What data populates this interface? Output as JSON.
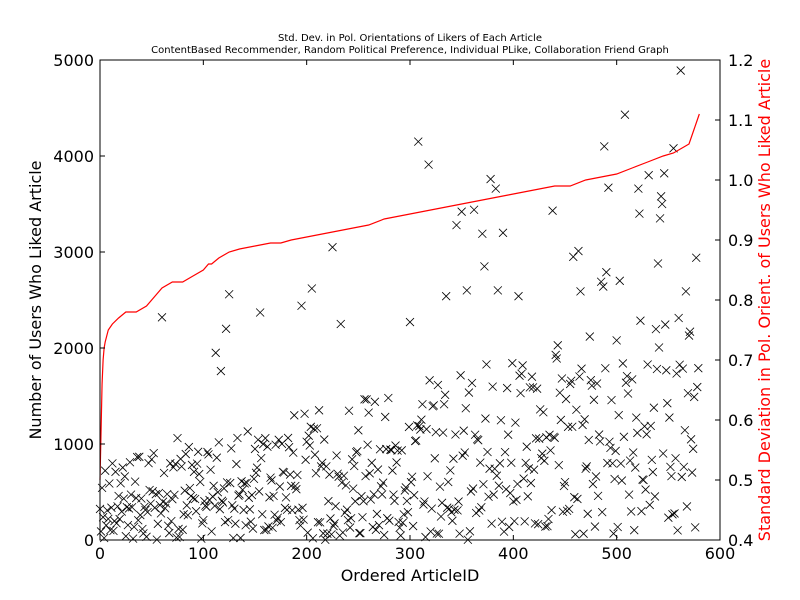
{
  "chart_data": {
    "type": "scatter",
    "title": "Std. Dev. in Pol. Orientations of Likers of Each Article",
    "subtitle": "ContentBased Recommender, Random Political Preference, Individual PLike, Collaboration Friend Graph",
    "xlabel": "Ordered ArticleID",
    "ylabel": "Number of Users Who Liked Article",
    "y2label": "Standard Deviation in Pol. Orient. of Users Who Liked Article",
    "xlim": [
      0,
      600
    ],
    "ylim": [
      0,
      5000
    ],
    "y2lim": [
      0.4,
      1.2
    ],
    "x_ticks": [
      0,
      100,
      200,
      300,
      400,
      500,
      600
    ],
    "y_ticks": [
      0,
      1000,
      2000,
      3000,
      4000,
      5000
    ],
    "y2_ticks": [
      0.4,
      0.5,
      0.6,
      0.7,
      0.8,
      0.9,
      1.0,
      1.1,
      1.2
    ],
    "y2_tick_labels": [
      "0.4",
      "0.5",
      "0.6",
      "0.7",
      "0.8",
      "0.9",
      "1.0",
      "1.1",
      "1.2"
    ],
    "grid": false,
    "series": [
      {
        "axis": "left",
        "marker": "x",
        "color": "#000000",
        "points_per_x": 1,
        "x_start": 0,
        "x_end": 579,
        "notable_points": [
          [
            60,
            2320
          ],
          [
            112,
            1950
          ],
          [
            117,
            1760
          ],
          [
            122,
            2200
          ],
          [
            125,
            2560
          ],
          [
            155,
            2370
          ],
          [
            195,
            2440
          ],
          [
            205,
            2620
          ],
          [
            225,
            3050
          ],
          [
            233,
            2560
          ],
          [
            233,
            2250
          ],
          [
            300,
            2270
          ],
          [
            308,
            4150
          ],
          [
            318,
            3910
          ],
          [
            335,
            2540
          ],
          [
            345,
            3280
          ],
          [
            350,
            3420
          ],
          [
            355,
            2600
          ],
          [
            362,
            3440
          ],
          [
            370,
            3190
          ],
          [
            372,
            2850
          ],
          [
            378,
            3760
          ],
          [
            383,
            3660
          ],
          [
            385,
            2600
          ],
          [
            390,
            3200
          ],
          [
            405,
            2540
          ],
          [
            438,
            3430
          ],
          [
            458,
            2950
          ],
          [
            463,
            3010
          ],
          [
            465,
            2590
          ],
          [
            485,
            2690
          ],
          [
            487,
            2640
          ],
          [
            488,
            4100
          ],
          [
            490,
            2790
          ],
          [
            492,
            3670
          ],
          [
            503,
            2700
          ],
          [
            508,
            4430
          ],
          [
            521,
            3660
          ],
          [
            522,
            3400
          ],
          [
            531,
            3800
          ],
          [
            540,
            2880
          ],
          [
            542,
            3350
          ],
          [
            543,
            3580
          ],
          [
            544,
            3500
          ],
          [
            546,
            3820
          ],
          [
            555,
            4080
          ],
          [
            562,
            4890
          ],
          [
            567,
            2590
          ],
          [
            571,
            2170
          ],
          [
            575,
            1490
          ],
          [
            577,
            2940
          ]
        ]
      },
      {
        "axis": "right",
        "type": "line",
        "color": "#ff0000",
        "name": "",
        "x": [
          0,
          1,
          2,
          3,
          4,
          5,
          8,
          12,
          18,
          25,
          35,
          45,
          55,
          60,
          70,
          80,
          90,
          100,
          105,
          108,
          115,
          125,
          135,
          150,
          165,
          175,
          185,
          200,
          215,
          230,
          245,
          260,
          275,
          290,
          305,
          320,
          335,
          350,
          365,
          380,
          395,
          410,
          425,
          440,
          455,
          470,
          485,
          500,
          515,
          530,
          545,
          555,
          565,
          570,
          575,
          580
        ],
        "y": [
          0.5,
          0.58,
          0.66,
          0.7,
          0.72,
          0.73,
          0.75,
          0.76,
          0.77,
          0.78,
          0.78,
          0.79,
          0.81,
          0.82,
          0.83,
          0.83,
          0.84,
          0.85,
          0.86,
          0.86,
          0.87,
          0.88,
          0.885,
          0.89,
          0.895,
          0.895,
          0.9,
          0.905,
          0.91,
          0.915,
          0.92,
          0.925,
          0.935,
          0.94,
          0.945,
          0.95,
          0.955,
          0.96,
          0.965,
          0.97,
          0.975,
          0.98,
          0.985,
          0.99,
          0.99,
          1.0,
          1.005,
          1.01,
          1.02,
          1.03,
          1.04,
          1.045,
          1.055,
          1.06,
          1.085,
          1.11
        ]
      }
    ]
  }
}
